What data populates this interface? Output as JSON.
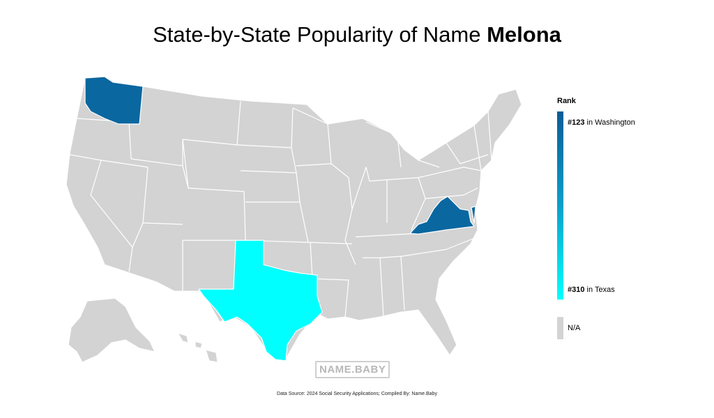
{
  "title": {
    "prefix": "State-by-State Popularity of Name ",
    "name": "Melona"
  },
  "legend": {
    "heading": "Rank",
    "top": {
      "rank": "#123",
      "suffix": " in Washington"
    },
    "bottom": {
      "rank": "#310",
      "suffix": " in Texas"
    },
    "na_label": "N/A"
  },
  "colors": {
    "default_state": "#d3d3d3",
    "washington": "#0a67a0",
    "virginia": "#0a67a0",
    "texas": "#00ffff",
    "ramp_top": "#0a5c96",
    "ramp_bottom": "#00ffff",
    "na": "#d3d3d3"
  },
  "highlighted_states": [
    {
      "state": "Washington",
      "rank": 123
    },
    {
      "state": "Virginia",
      "rank": 123
    },
    {
      "state": "Texas",
      "rank": 310
    }
  ],
  "watermark": "NAME.BABY",
  "source": "Data Source: 2024 Social Security Applications; Compiled By: Name.Baby"
}
